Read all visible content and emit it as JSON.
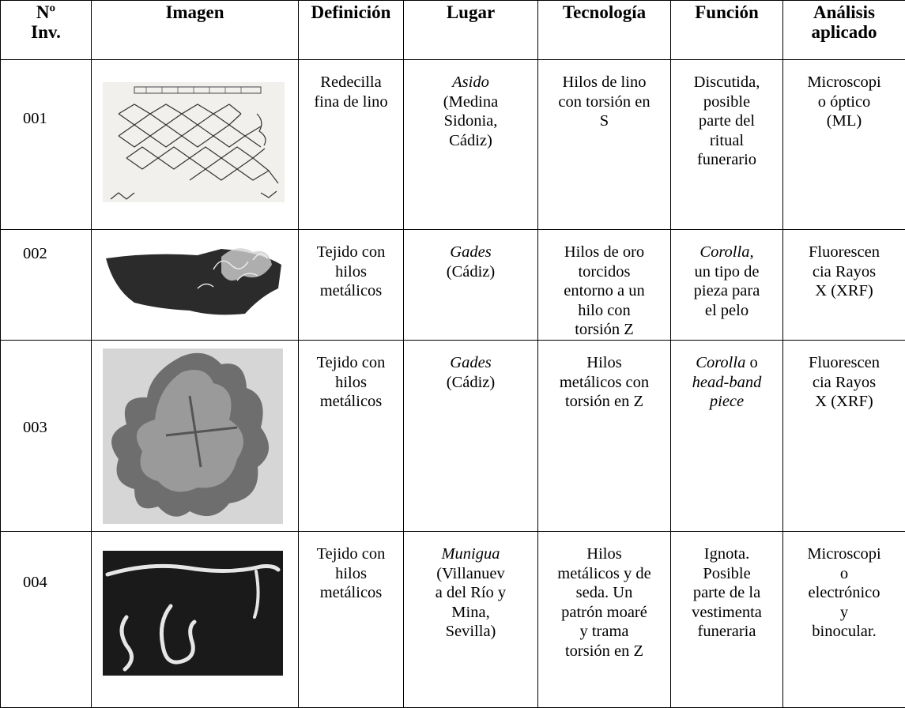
{
  "table": {
    "header": [
      [
        "Nº",
        "Inv."
      ],
      [
        "Imagen"
      ],
      [
        "Definición"
      ],
      [
        "Lugar"
      ],
      [
        "Tecnología"
      ],
      [
        "Función"
      ],
      [
        "Análisis",
        "aplicado"
      ]
    ],
    "rows": [
      {
        "no": "001",
        "definition": [
          "Redecilla",
          "fina de lino"
        ],
        "place": [
          [
            {
              "em": "Asido"
            }
          ],
          "(Medina",
          "Sidonia,",
          "Cádiz)"
        ],
        "technology": [
          "Hilos de lino",
          "con torsión en",
          "S"
        ],
        "function": [
          "Discutida,",
          "posible",
          "parte del",
          "ritual",
          "funerario"
        ],
        "analysis": [
          "Microscopi",
          "o óptico",
          "(ML)"
        ]
      },
      {
        "no": "002",
        "definition": [
          "Tejido con",
          "hilos",
          "metálicos"
        ],
        "place": [
          [
            {
              "em": "Gades"
            }
          ],
          "(Cádiz)"
        ],
        "technology": [
          "Hilos de oro",
          "torcidos",
          "entorno a un",
          "hilo con",
          "torsión Z"
        ],
        "function": [
          [
            {
              "em": "Corolla"
            },
            ","
          ],
          "un tipo de",
          "pieza para",
          "el pelo"
        ],
        "analysis": [
          "Fluorescen",
          "cia Rayos",
          "X (XRF)"
        ]
      },
      {
        "no": "003",
        "definition": [
          "Tejido con",
          "hilos",
          "metálicos"
        ],
        "place": [
          [
            {
              "em": "Gades"
            }
          ],
          "(Cádiz)"
        ],
        "technology": [
          "Hilos",
          "metálicos con",
          "torsión en Z"
        ],
        "function": [
          [
            {
              "em": "Corolla"
            },
            " o"
          ],
          [
            {
              "em": "head-band"
            }
          ],
          [
            {
              "em": "piece"
            }
          ]
        ],
        "analysis": [
          "Fluorescen",
          "cia Rayos",
          "X (XRF)"
        ]
      },
      {
        "no": "004",
        "definition": [
          "Tejido con",
          "hilos",
          "metálicos"
        ],
        "place": [
          [
            {
              "em": "Munigua"
            }
          ],
          "(Villanuev",
          "a del Río y",
          "Mina,",
          "Sevilla)"
        ],
        "technology": [
          "Hilos",
          "metálicos y de",
          "seda. Un",
          "patrón moaré",
          "y trama",
          "torsión en Z"
        ],
        "function": [
          "Ignota.",
          "Posible",
          "parte de la",
          "vestimenta",
          "funeraria"
        ],
        "analysis": [
          "Microscopi",
          "o",
          "electrónico",
          "y",
          "binocular."
        ]
      }
    ]
  }
}
